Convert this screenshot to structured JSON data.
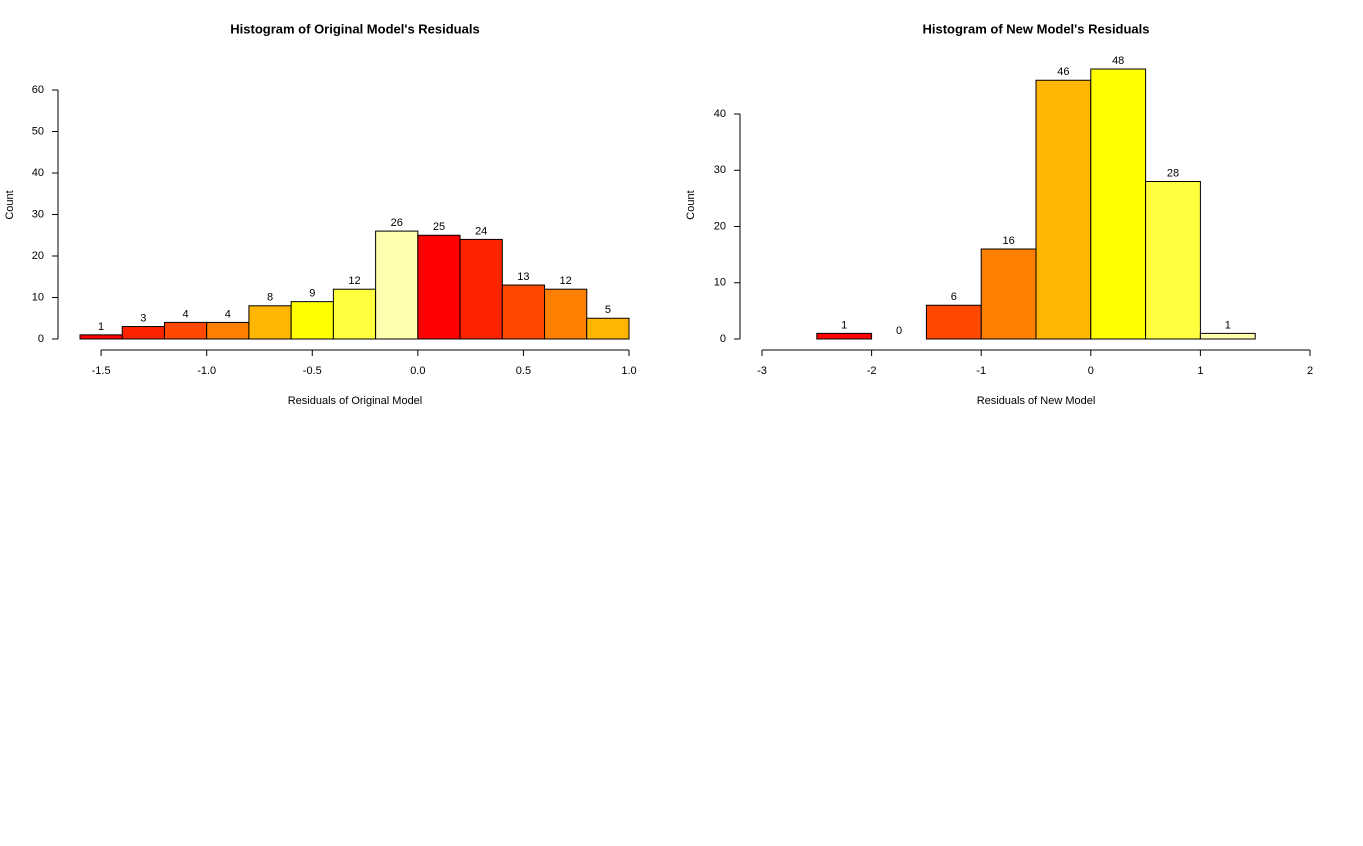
{
  "chart_data": [
    {
      "type": "histogram",
      "title": "Histogram of Original Model's Residuals",
      "xlabel": "Residuals of Original Model",
      "ylabel": "Count",
      "bins": [
        -1.6,
        -1.4,
        -1.2,
        -1.0,
        -0.8,
        -0.6,
        -0.4,
        -0.2,
        0.0,
        0.2,
        0.4,
        0.6,
        0.8,
        1.0
      ],
      "values": [
        1,
        3,
        4,
        4,
        8,
        9,
        12,
        26,
        25,
        24,
        13,
        12,
        5
      ],
      "colors": [
        "#FF0000",
        "#FF2400",
        "#FF4900",
        "#FF8000",
        "#FFB600",
        "#FFFF00",
        "#FFFF40",
        "#FFFFB0",
        "#FF0000",
        "#FF2400",
        "#FF4900",
        "#FF8000",
        "#FFB600"
      ],
      "xlim": [
        -1.6,
        1.0
      ],
      "xticks": [
        -1.5,
        {
          "value": -1,
          "label": "-1.0"
        },
        -0.5,
        {
          "value": 0,
          "label": "0.0"
        },
        0.5,
        {
          "value": 1,
          "label": "1.0"
        }
      ],
      "ylim": [
        0,
        60
      ],
      "yticks": [
        0,
        10,
        20,
        30,
        40,
        50,
        60
      ]
    },
    {
      "type": "histogram",
      "title": "Histogram of New Model's Residuals",
      "xlabel": "Residuals of New Model",
      "ylabel": "Count",
      "bins": [
        -2.5,
        -2.0,
        -1.5,
        -1.0,
        -0.5,
        0.0,
        0.5,
        1.0,
        1.5
      ],
      "values": [
        1,
        0,
        6,
        16,
        46,
        48,
        28,
        1
      ],
      "colors": [
        "#FF0000",
        "#FF2400",
        "#FF4900",
        "#FF8000",
        "#FFB600",
        "#FFFF00",
        "#FFFF40",
        "#FFFFB0"
      ],
      "xlim": [
        -3,
        2
      ],
      "xticks": [
        -3,
        -2,
        -1,
        0,
        1,
        2
      ],
      "ylim": [
        0,
        48
      ],
      "yticks": [
        0,
        10,
        20,
        30,
        40
      ]
    }
  ]
}
